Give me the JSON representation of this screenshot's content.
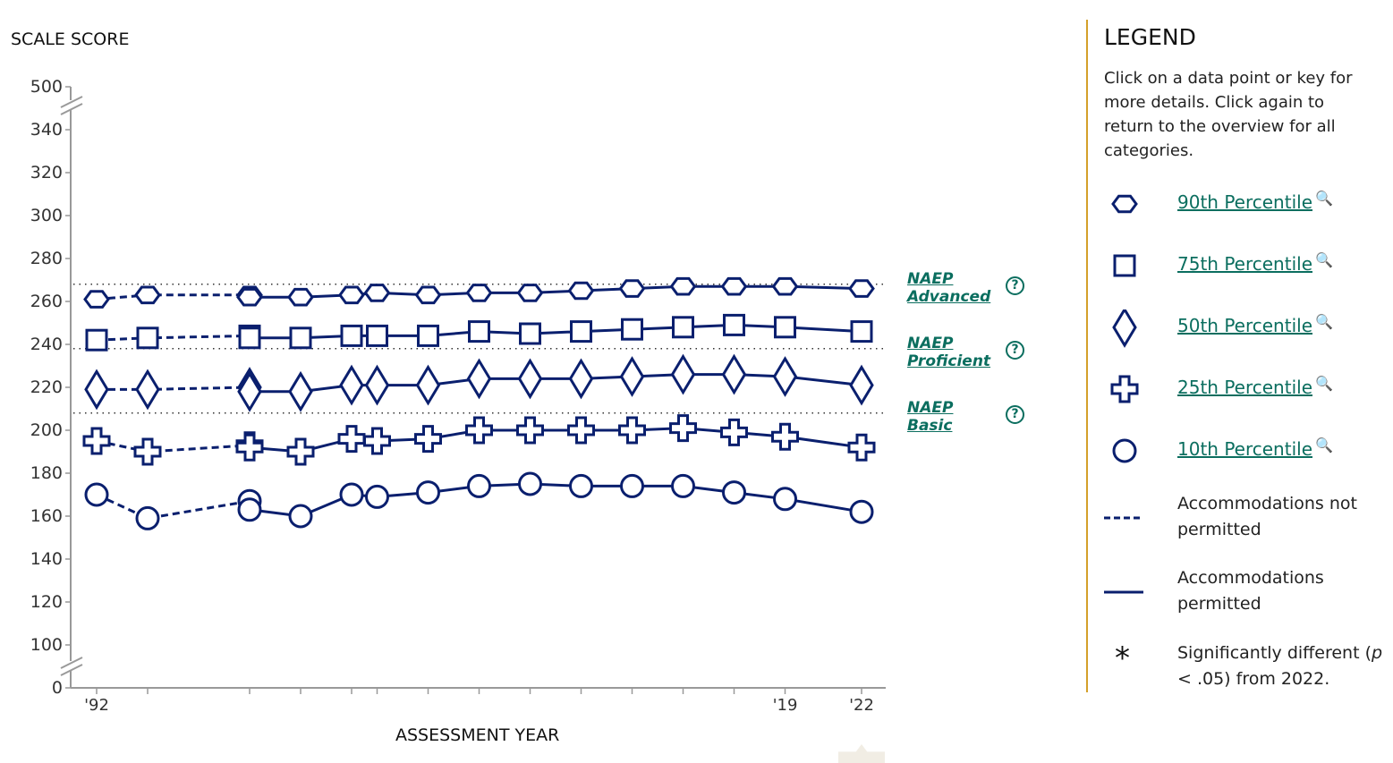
{
  "colors": {
    "series": "#0a1f6e",
    "link": "#0b6e5f",
    "divider": "#d4a02a",
    "axis": "#999999"
  },
  "chart_data": {
    "type": "line",
    "ylabel": "SCALE SCORE",
    "xlabel": "ASSESSMENT YEAR",
    "y_ticks": [
      0,
      100,
      120,
      140,
      160,
      180,
      200,
      220,
      240,
      260,
      280,
      300,
      320,
      340,
      500
    ],
    "y_axis_breaks": [
      "0-100",
      "340-500"
    ],
    "x_tick_years": [
      1992,
      1994,
      1998,
      2000,
      2002,
      2003,
      2005,
      2007,
      2009,
      2011,
      2013,
      2015,
      2017,
      2019,
      2022
    ],
    "x_tick_labels": [
      {
        "year": 1992,
        "label": "'92"
      },
      {
        "year": 2019,
        "label": "'19"
      },
      {
        "year": 2022,
        "label": "'22"
      }
    ],
    "reference_lines": [
      {
        "label": "NAEP Advanced",
        "value": 268
      },
      {
        "label": "NAEP Proficient",
        "value": 238
      },
      {
        "label": "NAEP Basic",
        "value": 208
      }
    ],
    "not_permitted_years": [
      1992,
      1994,
      1998
    ],
    "permitted_years": [
      1998,
      2000,
      2002,
      2003,
      2005,
      2007,
      2009,
      2011,
      2013,
      2015,
      2017,
      2019,
      2022
    ],
    "series": [
      {
        "name": "90th Percentile",
        "marker": "hexagon",
        "not_permitted": [
          261,
          263,
          263
        ],
        "permitted": [
          262,
          262,
          263,
          264,
          263,
          264,
          264,
          265,
          266,
          267,
          267,
          267,
          266
        ]
      },
      {
        "name": "75th Percentile",
        "marker": "square",
        "not_permitted": [
          242,
          243,
          244
        ],
        "permitted": [
          243,
          243,
          244,
          244,
          244,
          246,
          245,
          246,
          247,
          248,
          249,
          248,
          246
        ]
      },
      {
        "name": "50th Percentile",
        "marker": "diamond",
        "not_permitted": [
          219,
          219,
          220
        ],
        "permitted": [
          218,
          218,
          221,
          221,
          221,
          224,
          224,
          224,
          225,
          226,
          226,
          225,
          221
        ]
      },
      {
        "name": "25th Percentile",
        "marker": "plus",
        "not_permitted": [
          195,
          190,
          193
        ],
        "permitted": [
          192,
          190,
          196,
          195,
          196,
          200,
          200,
          200,
          200,
          201,
          199,
          197,
          192
        ]
      },
      {
        "name": "10th Percentile",
        "marker": "circle",
        "not_permitted": [
          170,
          159,
          167
        ],
        "permitted": [
          163,
          160,
          170,
          169,
          171,
          174,
          175,
          174,
          174,
          174,
          171,
          168,
          162
        ]
      }
    ]
  },
  "legend": {
    "title": "LEGEND",
    "description": "Click on a data point or key for more details. Click again to return to the overview for all categories.",
    "items": [
      {
        "label": "90th Percentile",
        "icon": "hexagon"
      },
      {
        "label": "75th Percentile",
        "icon": "square"
      },
      {
        "label": "50th Percentile",
        "icon": "diamond"
      },
      {
        "label": "25th Percentile",
        "icon": "plus"
      },
      {
        "label": "10th Percentile",
        "icon": "circle"
      }
    ],
    "zoom_icon": "🔍",
    "dashed_label": "Accommodations not permitted",
    "solid_label": "Accommodations permitted",
    "asterisk": "*",
    "sig_prefix": "Significantly different (",
    "sig_p": "p",
    "sig_suffix": " < .05) from 2022."
  },
  "naep_labels": {
    "advanced": [
      "NAEP",
      "Advanced"
    ],
    "proficient": [
      "NAEP",
      "Proficient"
    ],
    "basic": [
      "NAEP",
      "Basic"
    ],
    "help": "?"
  }
}
